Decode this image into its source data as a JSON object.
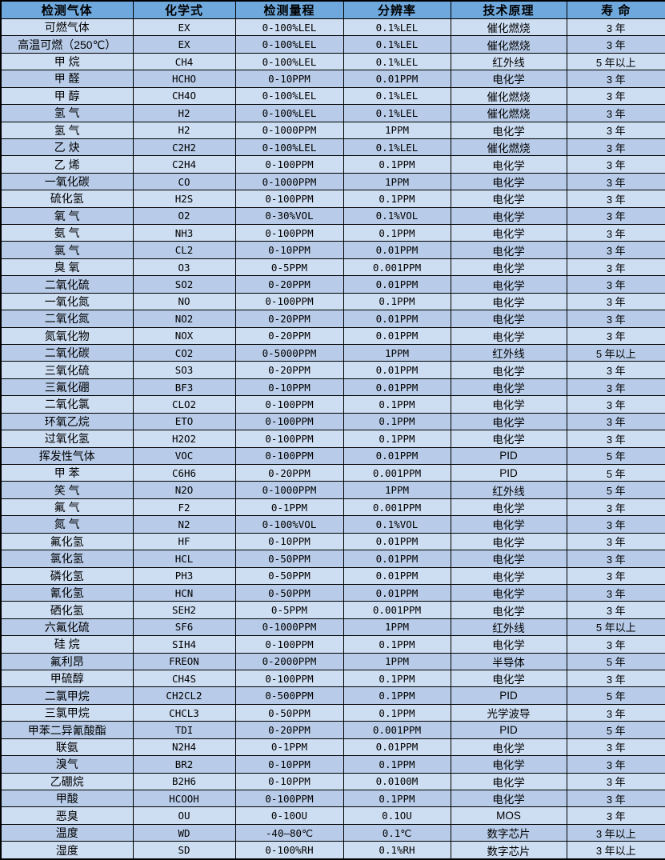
{
  "table": {
    "colors": {
      "header_bg": "#6fa8dc",
      "row_light": "#cdddf2",
      "row_dark": "#b8cce9",
      "border": "#000000",
      "text": "#000000"
    },
    "headers": [
      "检测气体",
      "化学式",
      "检测量程",
      "分辨率",
      "技术原理",
      "寿  命"
    ],
    "rows": [
      [
        "可燃气体",
        "EX",
        "0-100%LEL",
        "0.1%LEL",
        "催化燃烧",
        "3 年"
      ],
      [
        "高温可燃（250℃）",
        "EX",
        "0-100%LEL",
        "0.1%LEL",
        "催化燃烧",
        "3 年"
      ],
      [
        "甲  烷",
        "CH4",
        "0-100%LEL",
        "0.1%LEL",
        "红外线",
        "5 年以上"
      ],
      [
        "甲  醛",
        "HCHO",
        "0-10PPM",
        "0.01PPM",
        "电化学",
        "3 年"
      ],
      [
        "甲  醇",
        "CH4O",
        "0-100%LEL",
        "0.1%LEL",
        "催化燃烧",
        "3 年"
      ],
      [
        "氢  气",
        "H2",
        "0-100%LEL",
        "0.1%LEL",
        "催化燃烧",
        "3 年"
      ],
      [
        "氢  气",
        "H2",
        "0-1000PPM",
        "1PPM",
        "电化学",
        "3 年"
      ],
      [
        "乙  炔",
        "C2H2",
        "0-100%LEL",
        "0.1%LEL",
        "催化燃烧",
        "3 年"
      ],
      [
        "乙  烯",
        "C2H4",
        "0-100PPM",
        "0.1PPM",
        "电化学",
        "3 年"
      ],
      [
        "一氧化碳",
        "CO",
        "0-1000PPM",
        "1PPM",
        "电化学",
        "3 年"
      ],
      [
        "硫化氢",
        "H2S",
        "0-100PPM",
        "0.1PPM",
        "电化学",
        "3 年"
      ],
      [
        "氧  气",
        "O2",
        "0-30%VOL",
        "0.1%VOL",
        "电化学",
        "3 年"
      ],
      [
        "氨  气",
        "NH3",
        "0-100PPM",
        "0.1PPM",
        "电化学",
        "3 年"
      ],
      [
        "氯  气",
        "CL2",
        "0-10PPM",
        "0.01PPM",
        "电化学",
        "3 年"
      ],
      [
        "臭  氧",
        "O3",
        "0-5PPM",
        "0.001PPM",
        "电化学",
        "3 年"
      ],
      [
        "二氧化硫",
        "SO2",
        "0-20PPM",
        "0.01PPM",
        "电化学",
        "3 年"
      ],
      [
        "一氧化氮",
        "NO",
        "0-100PPM",
        "0.1PPM",
        "电化学",
        "3 年"
      ],
      [
        "二氧化氮",
        "NO2",
        "0-20PPM",
        "0.01PPM",
        "电化学",
        "3 年"
      ],
      [
        "氮氧化物",
        "NOX",
        "0-20PPM",
        "0.01PPM",
        "电化学",
        "3 年"
      ],
      [
        "二氧化碳",
        "CO2",
        "0-5000PPM",
        "1PPM",
        "红外线",
        "5 年以上"
      ],
      [
        "三氧化硫",
        "SO3",
        "0-20PPM",
        "0.01PPM",
        "电化学",
        "3 年"
      ],
      [
        "三氟化硼",
        "BF3",
        "0-10PPM",
        "0.01PPM",
        "电化学",
        "3 年"
      ],
      [
        "二氧化氯",
        "CLO2",
        "0-100PPM",
        "0.1PPM",
        "电化学",
        "3 年"
      ],
      [
        "环氧乙烷",
        "ETO",
        "0-100PPM",
        "0.1PPM",
        "电化学",
        "3 年"
      ],
      [
        "过氧化氢",
        "H2O2",
        "0-100PPM",
        "0.1PPM",
        "电化学",
        "3 年"
      ],
      [
        "挥发性气体",
        "VOC",
        "0-100PPM",
        "0.01PPM",
        "PID",
        "5 年"
      ],
      [
        "甲  苯",
        "C6H6",
        "0-20PPM",
        "0.001PPM",
        "PID",
        "5 年"
      ],
      [
        "笑  气",
        "N2O",
        "0-1000PPM",
        "1PPM",
        "红外线",
        "5 年"
      ],
      [
        "氟  气",
        "F2",
        "0-1PPM",
        "0.001PPM",
        "电化学",
        "3 年"
      ],
      [
        "氮  气",
        "N2",
        "0-100%VOL",
        "0.1%VOL",
        "电化学",
        "3 年"
      ],
      [
        "氟化氢",
        "HF",
        "0-10PPM",
        "0.01PPM",
        "电化学",
        "3 年"
      ],
      [
        "氯化氢",
        "HCL",
        "0-50PPM",
        "0.01PPM",
        "电化学",
        "3 年"
      ],
      [
        "磷化氢",
        "PH3",
        "0-50PPM",
        "0.01PPM",
        "电化学",
        "3 年"
      ],
      [
        "氰化氢",
        "HCN",
        "0-50PPM",
        "0.01PPM",
        "电化学",
        "3 年"
      ],
      [
        "硒化氢",
        "SEH2",
        "0-5PPM",
        "0.001PPM",
        "电化学",
        "3 年"
      ],
      [
        "六氟化硫",
        "SF6",
        "0-1000PPM",
        "1PPM",
        "红外线",
        "5 年以上"
      ],
      [
        "硅  烷",
        "SIH4",
        "0-100PPM",
        "0.1PPM",
        "电化学",
        "3 年"
      ],
      [
        "氟利昂",
        "FREON",
        "0-2000PPM",
        "1PPM",
        "半导体",
        "5 年"
      ],
      [
        "甲硫醇",
        "CH4S",
        "0-100PPM",
        "0.1PPM",
        "电化学",
        "3 年"
      ],
      [
        "二氯甲烷",
        "CH2CL2",
        "0-500PPM",
        "0.1PPM",
        "PID",
        "5 年"
      ],
      [
        "三氯甲烷",
        "CHCL3",
        "0-50PPM",
        "0.1PPM",
        "光学波导",
        "3 年"
      ],
      [
        "甲苯二异氰酸酯",
        "TDI",
        "0-20PPM",
        "0.001PPM",
        "PID",
        "5 年"
      ],
      [
        "联氨",
        "N2H4",
        "0-1PPM",
        "0.01PPM",
        "电化学",
        "3 年"
      ],
      [
        "溴气",
        "BR2",
        "0-10PPM",
        "0.1PPM",
        "电化学",
        "3 年"
      ],
      [
        "乙硼烷",
        "B2H6",
        "0-10PPM",
        "0.0100M",
        "电化学",
        "3 年"
      ],
      [
        "甲酸",
        "HCOOH",
        "0-100PPM",
        "0.1PPM",
        "电化学",
        "3 年"
      ],
      [
        "恶臭",
        "OU",
        "0-10OU",
        "0.1OU",
        "MOS",
        "3 年"
      ],
      [
        "温度",
        "WD",
        "-40—80℃",
        "0.1℃",
        "数字芯片",
        "3 年以上"
      ],
      [
        "湿度",
        "SD",
        "0-100%RH",
        "0.1%RH",
        "数字芯片",
        "3 年以上"
      ]
    ]
  }
}
